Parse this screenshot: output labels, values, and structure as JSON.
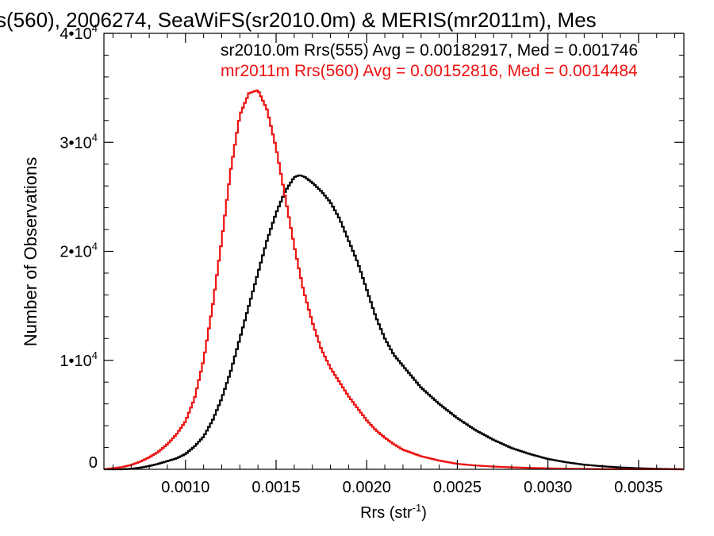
{
  "chart_data": {
    "type": "line",
    "title": "s(560), 2006274, SeaWiFS(sr2010.0m) & MERIS(mr2011m), Mes",
    "xlabel": "Rrs (str",
    "xlabel_exp": "-1",
    "xlabel_close": ")",
    "ylabel": "Number of Observations",
    "xlim": [
      0.00055,
      0.00375
    ],
    "ylim": [
      0,
      40000
    ],
    "grid": false,
    "legend_position": "top-right",
    "x_ticks": [
      {
        "value": 0.001,
        "label": "0.0010"
      },
      {
        "value": 0.0015,
        "label": "0.0015"
      },
      {
        "value": 0.002,
        "label": "0.0020"
      },
      {
        "value": 0.0025,
        "label": "0.0025"
      },
      {
        "value": 0.003,
        "label": "0.0030"
      },
      {
        "value": 0.0035,
        "label": "0.0035"
      }
    ],
    "y_ticks": [
      {
        "value": 0,
        "mant": "0",
        "exp": ""
      },
      {
        "value": 10000,
        "mant": "1•10",
        "exp": "4"
      },
      {
        "value": 20000,
        "mant": "2•10",
        "exp": "4"
      },
      {
        "value": 30000,
        "mant": "3•10",
        "exp": "4"
      },
      {
        "value": 40000,
        "mant": "4•10",
        "exp": "4"
      }
    ],
    "series": [
      {
        "name": "sr2010.0m Rrs(555) Avg = 0.00182917, Med = 0.001746",
        "color": "#000000",
        "x": [
          0.00055,
          0.0006,
          0.00065,
          0.0007,
          0.00075,
          0.0008,
          0.00085,
          0.0009,
          0.00095,
          0.001,
          0.00105,
          0.0011,
          0.00115,
          0.0012,
          0.00125,
          0.0013,
          0.00135,
          0.0014,
          0.00145,
          0.0015,
          0.00155,
          0.0016,
          0.00163,
          0.00166,
          0.0017,
          0.00175,
          0.0018,
          0.00185,
          0.0019,
          0.00195,
          0.002,
          0.00205,
          0.0021,
          0.00215,
          0.0022,
          0.0023,
          0.0024,
          0.0025,
          0.0026,
          0.0027,
          0.0028,
          0.0029,
          0.003,
          0.0031,
          0.0032,
          0.0033,
          0.0034,
          0.0035,
          0.0036,
          0.00375
        ],
        "y": [
          0,
          0,
          0,
          50,
          150,
          300,
          500,
          750,
          1000,
          1400,
          2100,
          3000,
          4500,
          6500,
          9000,
          12000,
          15000,
          18000,
          21000,
          23500,
          25500,
          26800,
          27000,
          26800,
          26300,
          25500,
          24500,
          23000,
          21000,
          19000,
          16500,
          14000,
          12000,
          10500,
          9500,
          7500,
          6000,
          4700,
          3600,
          2700,
          1950,
          1400,
          950,
          650,
          420,
          280,
          170,
          100,
          50,
          0
        ]
      },
      {
        "name": "mr2011m Rrs(560) Avg = 0.00152816, Med = 0.0014484",
        "color": "#ee1111",
        "x": [
          0.00055,
          0.0006,
          0.00065,
          0.0007,
          0.00075,
          0.0008,
          0.00085,
          0.0009,
          0.00095,
          0.001,
          0.00105,
          0.0011,
          0.00115,
          0.0012,
          0.00125,
          0.0013,
          0.00135,
          0.0014,
          0.00145,
          0.0015,
          0.00155,
          0.0016,
          0.00165,
          0.0017,
          0.00175,
          0.0018,
          0.00185,
          0.0019,
          0.00195,
          0.002,
          0.00205,
          0.0021,
          0.00215,
          0.0022,
          0.0023,
          0.0024,
          0.0025,
          0.0026,
          0.0027,
          0.0028,
          0.0029,
          0.003,
          0.0031,
          0.0032,
          0.0033,
          0.0035,
          0.00375
        ],
        "y": [
          0,
          100,
          200,
          400,
          700,
          1100,
          1600,
          2300,
          3200,
          4400,
          6500,
          10000,
          15000,
          21000,
          27500,
          32500,
          34500,
          34800,
          33000,
          29500,
          25000,
          20500,
          16500,
          13500,
          11000,
          9300,
          8000,
          6700,
          5600,
          4500,
          3600,
          2900,
          2300,
          1800,
          1200,
          800,
          500,
          350,
          250,
          180,
          130,
          90,
          60,
          40,
          20,
          10,
          0
        ]
      }
    ]
  }
}
